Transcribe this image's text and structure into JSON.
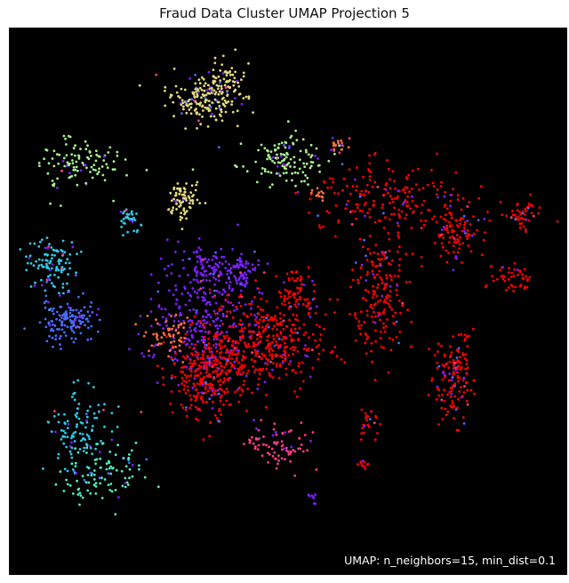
{
  "chart_data": {
    "type": "scatter",
    "title": "Fraud Data Cluster UMAP Projection 5",
    "annotation": "UMAP: n_neighbors=15, min_dist=0.1",
    "xlim": [
      0,
      100
    ],
    "ylim": [
      0,
      100
    ],
    "grid": false,
    "axes_visible": false,
    "background": "#000000",
    "palette": {
      "red": "#ff0000",
      "red_light": "#ff3030",
      "orange": "#ff7040",
      "yellow": "#e3d981",
      "green": "#a8f090",
      "cyan": "#30c8e8",
      "aqua": "#50f0c0",
      "blue": "#4a6cff",
      "purple": "#7a20ff",
      "pink": "#ff3c80"
    },
    "clusters": [
      {
        "cx": 34.5,
        "cy": 87.0,
        "spread": [
          3.2,
          2.2
        ],
        "n": 160,
        "color": "yellow"
      },
      {
        "cx": 38.5,
        "cy": 90.0,
        "spread": [
          2.0,
          2.2
        ],
        "n": 80,
        "color": "yellow"
      },
      {
        "cx": 11.5,
        "cy": 75.0,
        "spread": [
          4.0,
          2.5
        ],
        "n": 110,
        "color": "green"
      },
      {
        "cx": 49.0,
        "cy": 76.0,
        "spread": [
          4.0,
          2.2
        ],
        "n": 130,
        "color": "green"
      },
      {
        "cx": 31.0,
        "cy": 68.5,
        "spread": [
          1.5,
          1.8
        ],
        "n": 80,
        "color": "yellow"
      },
      {
        "cx": 21.5,
        "cy": 65.5,
        "spread": [
          1.0,
          1.0
        ],
        "n": 35,
        "color": "cyan"
      },
      {
        "cx": 7.5,
        "cy": 56.5,
        "spread": [
          2.5,
          2.5
        ],
        "n": 110,
        "color": "cyan"
      },
      {
        "cx": 10.5,
        "cy": 46.5,
        "spread": [
          2.5,
          2.0
        ],
        "n": 140,
        "color": "blue"
      },
      {
        "cx": 35.5,
        "cy": 56.0,
        "spread": [
          2.5,
          2.0
        ],
        "n": 90,
        "color": "purple"
      },
      {
        "cx": 42.0,
        "cy": 55.5,
        "spread": [
          1.8,
          1.8
        ],
        "n": 60,
        "color": "purple"
      },
      {
        "cx": 35.0,
        "cy": 47.0,
        "spread": [
          4.5,
          5.0
        ],
        "n": 260,
        "color": "purple"
      },
      {
        "cx": 46.5,
        "cy": 42.5,
        "spread": [
          5.0,
          4.5
        ],
        "n": 380,
        "color": "red"
      },
      {
        "cx": 35.5,
        "cy": 36.5,
        "spread": [
          3.5,
          4.0
        ],
        "n": 340,
        "color": "red"
      },
      {
        "cx": 51.5,
        "cy": 52.0,
        "spread": [
          1.5,
          2.5
        ],
        "n": 70,
        "color": "red"
      },
      {
        "cx": 28.5,
        "cy": 44.0,
        "spread": [
          2.0,
          2.0
        ],
        "n": 60,
        "color": "orange"
      },
      {
        "cx": 68.0,
        "cy": 69.0,
        "spread": [
          7.0,
          3.0
        ],
        "n": 180,
        "color": "red"
      },
      {
        "cx": 66.5,
        "cy": 52.0,
        "spread": [
          2.5,
          6.0
        ],
        "n": 200,
        "color": "red"
      },
      {
        "cx": 80.0,
        "cy": 63.0,
        "spread": [
          2.5,
          2.5
        ],
        "n": 110,
        "color": "red"
      },
      {
        "cx": 92.0,
        "cy": 66.0,
        "spread": [
          1.5,
          1.5
        ],
        "n": 45,
        "color": "red"
      },
      {
        "cx": 91.0,
        "cy": 54.0,
        "spread": [
          2.0,
          1.5
        ],
        "n": 45,
        "color": "red"
      },
      {
        "cx": 79.5,
        "cy": 36.0,
        "spread": [
          2.0,
          4.0
        ],
        "n": 150,
        "color": "red"
      },
      {
        "cx": 13.0,
        "cy": 26.5,
        "spread": [
          3.0,
          3.5
        ],
        "n": 110,
        "color": "cyan"
      },
      {
        "cx": 16.5,
        "cy": 18.5,
        "spread": [
          3.5,
          3.0
        ],
        "n": 100,
        "color": "aqua"
      },
      {
        "cx": 48.0,
        "cy": 23.5,
        "spread": [
          3.0,
          2.5
        ],
        "n": 80,
        "color": "pink"
      },
      {
        "cx": 64.5,
        "cy": 27.5,
        "spread": [
          1.0,
          1.5
        ],
        "n": 25,
        "color": "red"
      },
      {
        "cx": 59.0,
        "cy": 78.5,
        "spread": [
          0.8,
          1.0
        ],
        "n": 20,
        "color": "orange"
      },
      {
        "cx": 55.5,
        "cy": 69.5,
        "spread": [
          0.6,
          0.6
        ],
        "n": 12,
        "color": "orange"
      },
      {
        "cx": 63.5,
        "cy": 20.0,
        "spread": [
          0.6,
          0.4
        ],
        "n": 10,
        "color": "red"
      },
      {
        "cx": 54.5,
        "cy": 14.0,
        "spread": [
          0.4,
          0.5
        ],
        "n": 8,
        "color": "purple"
      }
    ]
  }
}
